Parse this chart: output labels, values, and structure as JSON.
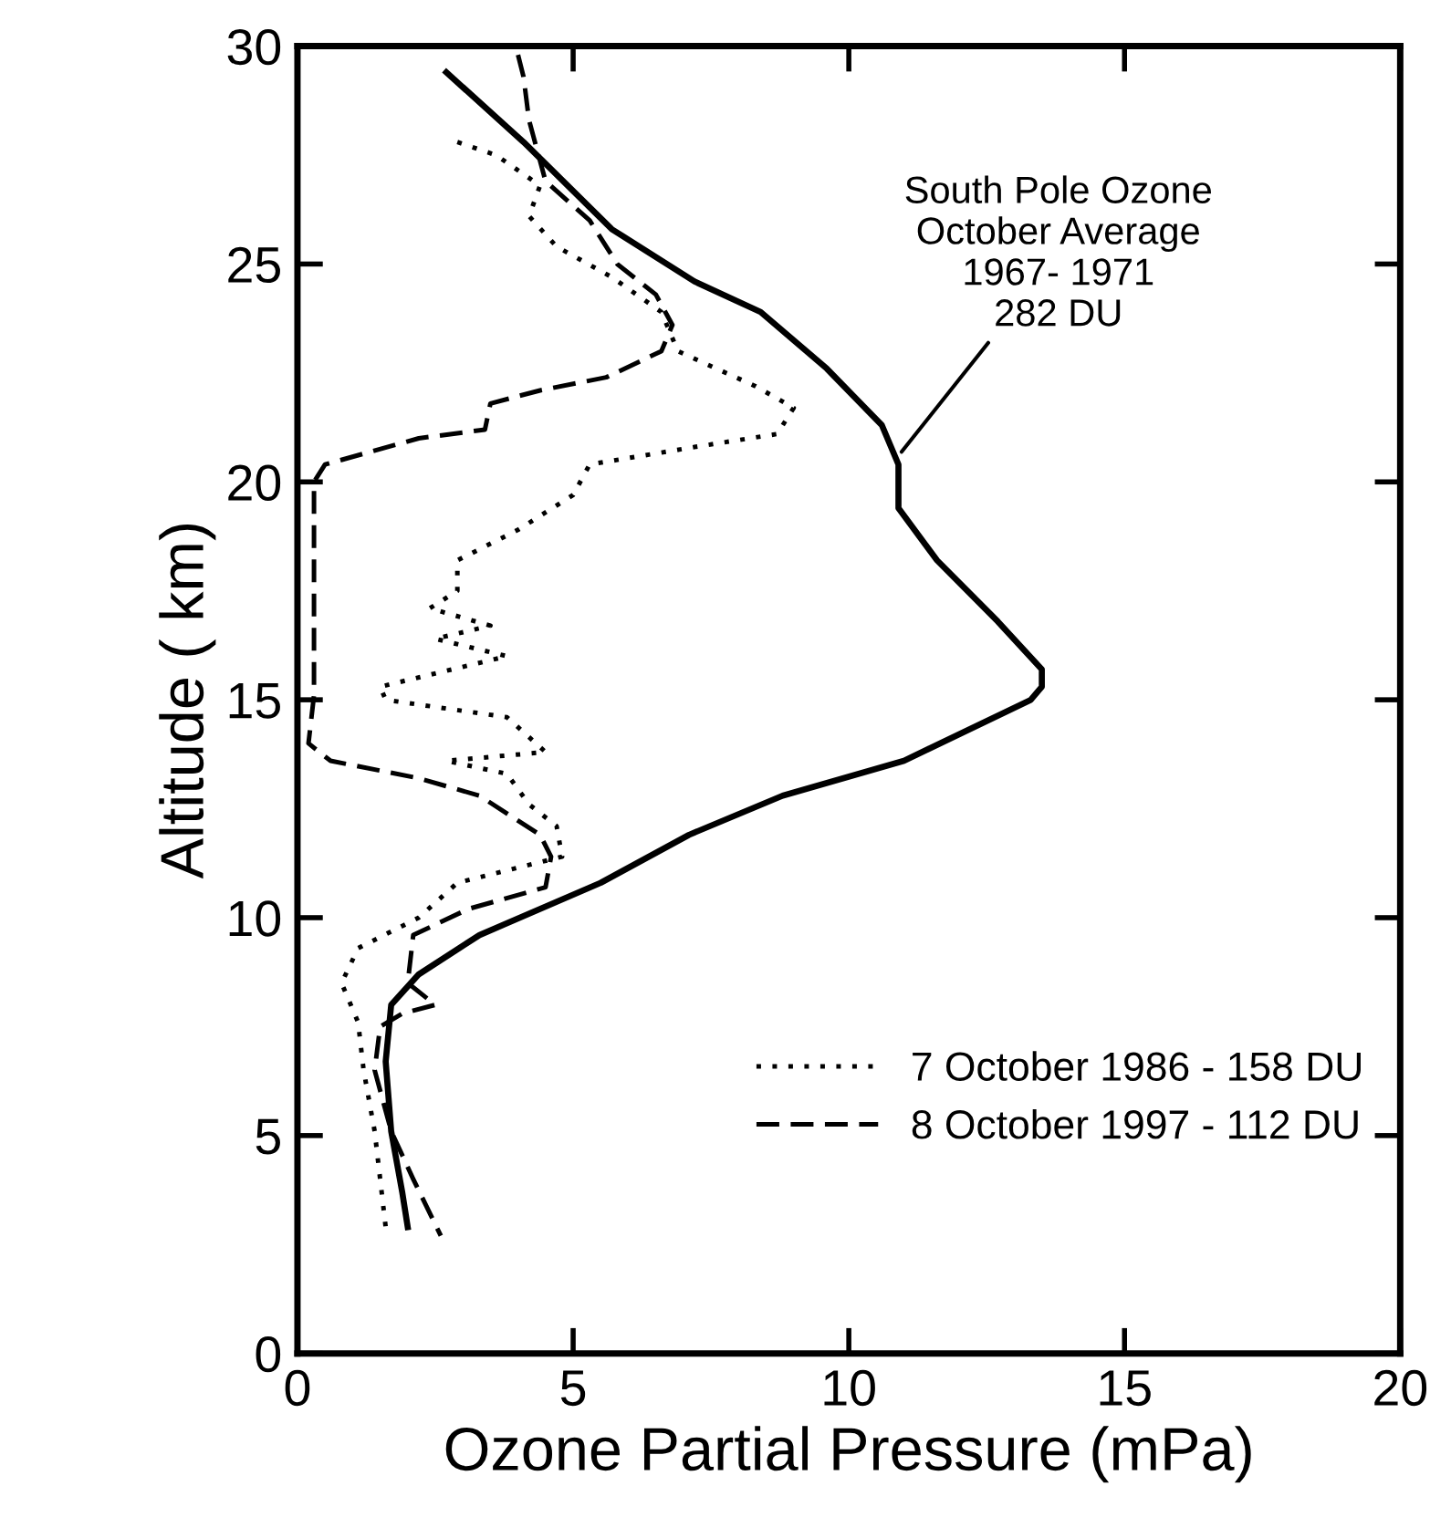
{
  "chart_data": {
    "type": "line",
    "xlabel": "Ozone Partial Pressure (mPa)",
    "ylabel": "Altitude ( km)",
    "xlim": [
      0,
      20
    ],
    "xticks": [
      0,
      5,
      10,
      15,
      20
    ],
    "ylim": [
      0,
      30
    ],
    "yticks": [
      0,
      5,
      10,
      15,
      20,
      25,
      30
    ],
    "grid": false,
    "legend": "bottom right",
    "marker": "none",
    "annotations": [
      {
        "text": "South Pole Ozone\nOctober Average\n1967- 1971\n282 DU",
        "x": 10.9,
        "y": 20.6
      }
    ],
    "series": [
      {
        "color": "#000000",
        "line_style": "solid",
        "x": [
          2.7,
          4.1,
          5.7,
          7.2,
          8.4,
          9.6,
          10.6,
          10.9,
          10.9,
          11.6,
          12.7,
          13.5,
          13.5,
          13.3,
          11.0,
          8.8,
          7.1,
          5.5,
          3.3,
          2.2,
          1.7,
          1.6,
          1.7,
          1.9,
          2.0
        ],
        "values": [
          29.4,
          27.8,
          25.8,
          24.6,
          23.9,
          22.6,
          21.3,
          20.4,
          19.4,
          18.2,
          16.8,
          15.7,
          15.3,
          15.0,
          13.6,
          12.8,
          11.9,
          10.8,
          9.6,
          8.7,
          8.0,
          6.7,
          5.1,
          3.7,
          2.9
        ]
      },
      {
        "name": "7 October 1986 - 158 DU",
        "color": "#000000",
        "line_style": "dotted",
        "x": [
          2.9,
          3.6,
          4.4,
          4.2,
          4.7,
          5.7,
          6.6,
          6.9,
          8.3,
          9.0,
          8.7,
          7.2,
          5.3,
          5.0,
          4.0,
          2.9,
          2.9,
          2.4,
          3.5,
          2.5,
          3.8,
          1.5,
          1.6,
          3.8,
          4.5,
          2.7,
          3.8,
          4.2,
          4.7,
          4.8,
          2.9,
          2.2,
          1.1,
          0.8,
          1.1,
          1.2,
          1.4,
          1.6
        ],
        "values": [
          27.8,
          27.5,
          26.8,
          26.1,
          25.4,
          24.7,
          23.9,
          23.0,
          22.2,
          21.7,
          21.1,
          20.8,
          20.4,
          19.7,
          18.9,
          18.2,
          17.5,
          17.1,
          16.7,
          16.4,
          16.0,
          15.3,
          15.0,
          14.6,
          13.8,
          13.6,
          13.3,
          12.6,
          12.1,
          11.4,
          10.8,
          10.0,
          9.3,
          8.5,
          7.6,
          6.5,
          5.1,
          2.9
        ]
      },
      {
        "name": "8 October 1997 - 112 DU",
        "color": "#000000",
        "line_style": "dashed",
        "x": [
          4.0,
          4.1,
          4.2,
          4.5,
          5.3,
          5.8,
          6.5,
          6.8,
          6.6,
          5.6,
          4.4,
          3.5,
          3.4,
          2.2,
          0.5,
          0.3,
          0.3,
          0.2,
          0.6,
          2.2,
          3.3,
          4.4,
          4.6,
          4.5,
          3.1,
          2.1,
          2.0,
          2.5,
          1.9,
          1.5,
          1.4,
          1.7,
          2.1,
          2.6
        ],
        "values": [
          29.8,
          29.3,
          28.3,
          26.9,
          26.0,
          25.0,
          24.3,
          23.6,
          23.0,
          22.4,
          22.1,
          21.8,
          21.2,
          21.0,
          20.4,
          20.0,
          15.1,
          14.0,
          13.6,
          13.2,
          12.8,
          11.9,
          11.4,
          10.7,
          10.2,
          9.6,
          8.5,
          8.0,
          7.8,
          7.5,
          6.5,
          5.1,
          4.0,
          2.7
        ]
      }
    ]
  }
}
